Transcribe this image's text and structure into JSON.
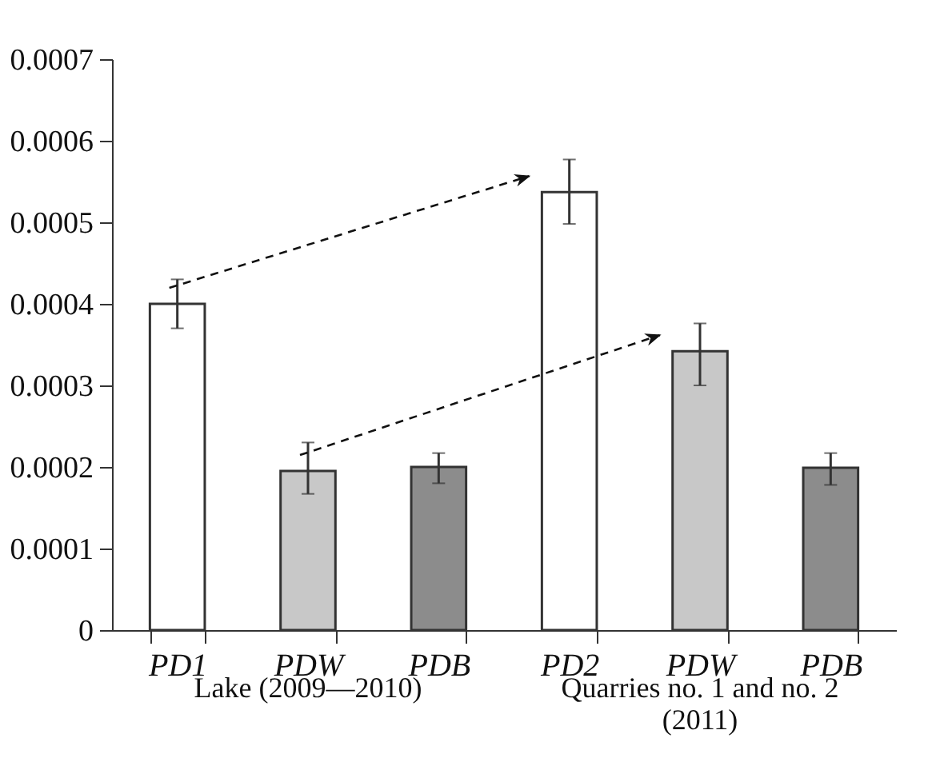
{
  "chart_data": {
    "type": "bar",
    "categories": [
      "PD1",
      "PDW",
      "PDB",
      "PD2",
      "PDW",
      "PDB"
    ],
    "values": [
      0.0004,
      0.000195,
      0.0002,
      0.000537,
      0.000342,
      0.000199
    ],
    "colors": [
      "#ffffff",
      "#c8c8c8",
      "#8c8c8c",
      "#ffffff",
      "#c8c8c8",
      "#8c8c8c"
    ],
    "errors": [
      [
        0.00037,
        0.00043
      ],
      [
        0.000167,
        0.00023
      ],
      [
        0.00018,
        0.000217
      ],
      [
        0.000498,
        0.000577
      ],
      [
        0.0003,
        0.000376
      ],
      [
        0.000178,
        0.000217
      ]
    ],
    "ylim": [
      0,
      0.0007
    ],
    "yticks": [
      {
        "value": 0,
        "label": "0"
      },
      0.0001,
      0.0002,
      0.0003,
      0.0004,
      0.0005,
      0.0006,
      0.0007
    ],
    "grid": false,
    "annotations": [
      "Lake (2009—2010)",
      "Quarries no. 1 and no. 2 (2011)"
    ]
  }
}
